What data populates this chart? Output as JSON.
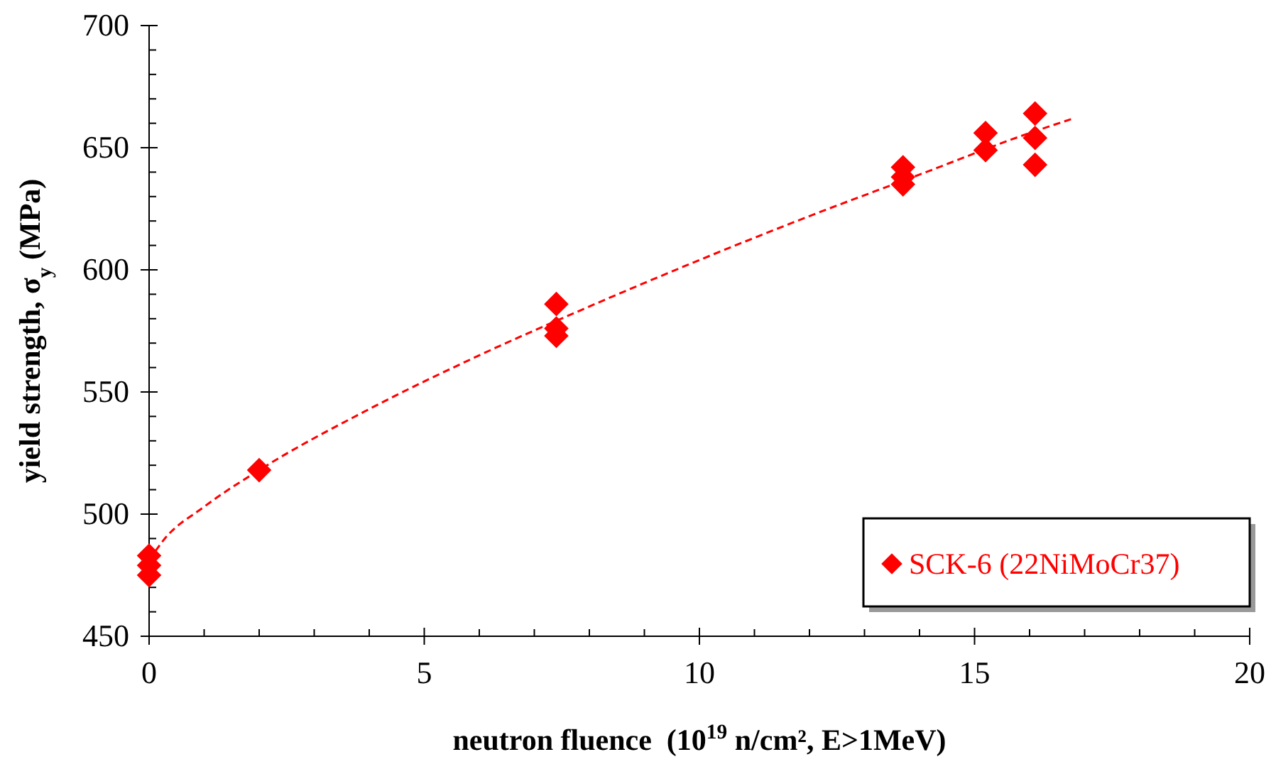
{
  "chart_data": {
    "type": "scatter",
    "xlabel": "neutron fluence  (10$^{19}$ n/cm², E>1MeV)",
    "ylabel": "yield strength, σ$_{y}$ (MPa)",
    "xlim": [
      0,
      20
    ],
    "ylim": [
      450,
      700
    ],
    "xticks": [
      0,
      {
        "value": 1,
        "label": null
      },
      {
        "value": 2,
        "label": null
      },
      {
        "value": 3,
        "label": null
      },
      {
        "value": 4,
        "label": null
      },
      5,
      {
        "value": 6,
        "label": null
      },
      {
        "value": 7,
        "label": null
      },
      {
        "value": 8,
        "label": null
      },
      {
        "value": 9,
        "label": null
      },
      10,
      {
        "value": 11,
        "label": null
      },
      {
        "value": 12,
        "label": null
      },
      {
        "value": 13,
        "label": null
      },
      {
        "value": 14,
        "label": null
      },
      15,
      {
        "value": 16,
        "label": null
      },
      {
        "value": 17,
        "label": null
      },
      {
        "value": 18,
        "label": null
      },
      {
        "value": 19,
        "label": null
      },
      20
    ],
    "yticks": [
      450,
      {
        "value": 460,
        "label": null
      },
      {
        "value": 470,
        "label": null
      },
      {
        "value": 480,
        "label": null
      },
      {
        "value": 490,
        "label": null
      },
      500,
      {
        "value": 510,
        "label": null
      },
      {
        "value": 520,
        "label": null
      },
      {
        "value": 530,
        "label": null
      },
      {
        "value": 540,
        "label": null
      },
      550,
      {
        "value": 560,
        "label": null
      },
      {
        "value": 570,
        "label": null
      },
      {
        "value": 580,
        "label": null
      },
      {
        "value": 590,
        "label": null
      },
      600,
      {
        "value": 610,
        "label": null
      },
      {
        "value": 620,
        "label": null
      },
      {
        "value": 630,
        "label": null
      },
      {
        "value": 640,
        "label": null
      },
      650,
      {
        "value": 660,
        "label": null
      },
      {
        "value": 670,
        "label": null
      },
      {
        "value": 680,
        "label": null
      },
      {
        "value": 690,
        "label": null
      },
      700
    ],
    "grid": false,
    "legend": "bottom right",
    "series": [
      {
        "type": "line",
        "color": "#ff0000",
        "marker": "none",
        "line_style": "dashed",
        "x": [
          0,
          0.25,
          1,
          2,
          4,
          6,
          8,
          10,
          12,
          14,
          16,
          16.8
        ],
        "values": [
          481,
          489,
          503,
          518,
          543,
          565,
          585,
          604,
          622,
          639,
          656,
          662
        ]
      },
      {
        "name": "SCK-6 (22NiMoCr37)",
        "color": "#ff0000",
        "marker": "diamond",
        "x": [
          0,
          0,
          0,
          2,
          7.4,
          7.4,
          7.4,
          13.7,
          13.7,
          13.7,
          15.2,
          15.2,
          16.1,
          16.1,
          16.1
        ],
        "values": [
          483,
          479,
          475,
          518,
          586,
          576,
          573,
          642,
          638,
          635,
          656,
          649,
          664,
          654,
          643
        ]
      }
    ]
  }
}
